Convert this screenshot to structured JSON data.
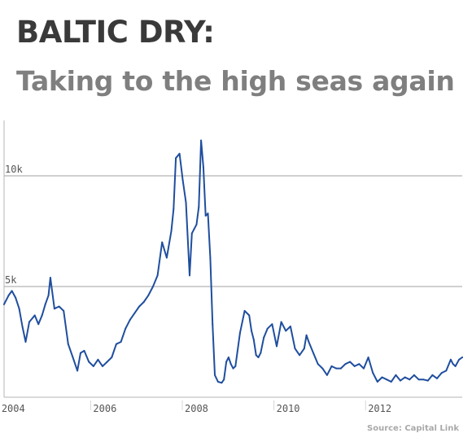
{
  "title": "BALTIC DRY:",
  "subtitle": "Taking to the high seas again",
  "source": "Source: Capital Link",
  "colors": {
    "line": "#1f4e9e",
    "grid": "#b5b5b5",
    "title": "#3a3a3a",
    "subtitle": "#7f7f7f"
  },
  "chart_data": {
    "type": "line",
    "title": "",
    "xlabel": "",
    "ylabel": "",
    "grid": true,
    "xlim": [
      2003.95,
      2013.95
    ],
    "ylim": [
      0,
      12500
    ],
    "y_ticks": [
      {
        "value": 5000,
        "label": "5k"
      },
      {
        "value": 10000,
        "label": "10k"
      }
    ],
    "x_ticks": [
      {
        "value": 2004,
        "label": "2004"
      },
      {
        "value": 2006,
        "label": "2006"
      },
      {
        "value": 2008,
        "label": "2008"
      },
      {
        "value": 2010,
        "label": "2010"
      },
      {
        "value": 2012,
        "label": "2012"
      }
    ],
    "series": [
      {
        "x": [
          2003.95,
          2004.05,
          2004.12,
          2004.2,
          2004.28,
          2004.35,
          2004.42,
          2004.5,
          2004.58,
          2004.62,
          2004.7,
          2004.78,
          2004.85,
          2004.92,
          2004.96,
          2005.05,
          2005.15,
          2005.25,
          2005.35,
          2005.45,
          2005.55,
          2005.62,
          2005.7,
          2005.8,
          2005.9,
          2006.0,
          2006.1,
          2006.2,
          2006.3,
          2006.4,
          2006.5,
          2006.6,
          2006.7,
          2006.8,
          2006.9,
          2007.0,
          2007.1,
          2007.2,
          2007.3,
          2007.4,
          2007.5,
          2007.6,
          2007.65,
          2007.7,
          2007.78,
          2007.85,
          2007.92,
          2008.0,
          2008.05,
          2008.1,
          2008.15,
          2008.2,
          2008.25,
          2008.3,
          2008.35,
          2008.4,
          2008.45,
          2008.5,
          2008.55,
          2008.62,
          2008.7,
          2008.75,
          2008.8,
          2008.85,
          2008.9,
          2008.95,
          2009.0,
          2009.1,
          2009.2,
          2009.3,
          2009.35,
          2009.4,
          2009.45,
          2009.5,
          2009.55,
          2009.62,
          2009.7,
          2009.8,
          2009.9,
          2010.0,
          2010.1,
          2010.2,
          2010.3,
          2010.4,
          2010.5,
          2010.55,
          2010.6,
          2010.7,
          2010.8,
          2010.9,
          2011.0,
          2011.1,
          2011.2,
          2011.3,
          2011.4,
          2011.5,
          2011.6,
          2011.7,
          2011.8,
          2011.9,
          2012.0,
          2012.1,
          2012.2,
          2012.3,
          2012.4,
          2012.5,
          2012.6,
          2012.7,
          2012.8,
          2012.9,
          2013.0,
          2013.1,
          2013.2,
          2013.3,
          2013.4,
          2013.5,
          2013.6,
          2013.7,
          2013.75,
          2013.8,
          2013.88,
          2013.95
        ],
        "y": [
          4200,
          4600,
          4800,
          4500,
          4000,
          3200,
          2500,
          3400,
          3600,
          3700,
          3300,
          3700,
          4200,
          4600,
          5400,
          4000,
          4100,
          3900,
          2400,
          1800,
          1200,
          2000,
          2100,
          1600,
          1400,
          1700,
          1400,
          1600,
          1800,
          2400,
          2500,
          3100,
          3500,
          3800,
          4100,
          4300,
          4600,
          5000,
          5500,
          7000,
          6300,
          7500,
          8500,
          10800,
          11000,
          9800,
          8800,
          5500,
          7400,
          7600,
          7800,
          8600,
          11600,
          10400,
          8200,
          8300,
          6300,
          3300,
          1000,
          700,
          650,
          800,
          1600,
          1800,
          1500,
          1300,
          1400,
          2900,
          3900,
          3700,
          3000,
          2600,
          1900,
          1800,
          2000,
          2700,
          3100,
          3300,
          2300,
          3400,
          3000,
          3200,
          2200,
          1900,
          2200,
          2800,
          2500,
          2000,
          1500,
          1300,
          1000,
          1400,
          1300,
          1300,
          1500,
          1600,
          1400,
          1500,
          1300,
          1800,
          1100,
          700,
          900,
          800,
          700,
          1000,
          750,
          900,
          800,
          1000,
          800,
          800,
          750,
          1000,
          850,
          1100,
          1200,
          1700,
          1500,
          1400,
          1700,
          1800
        ]
      }
    ]
  }
}
